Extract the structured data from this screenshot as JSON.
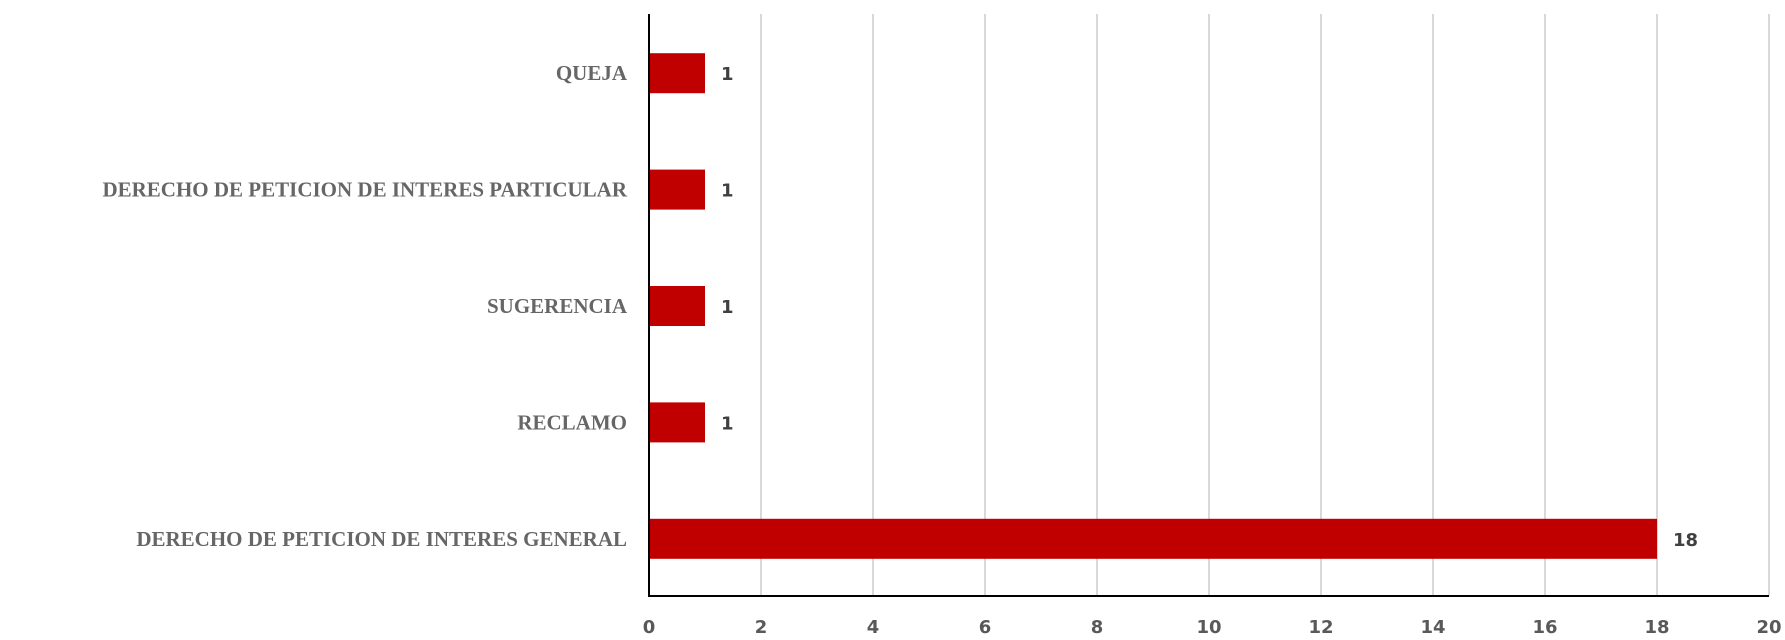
{
  "chart_data": {
    "type": "bar",
    "orientation": "horizontal",
    "categories": [
      "QUEJA",
      "DERECHO DE PETICION DE INTERES PARTICULAR",
      "SUGERENCIA",
      "RECLAMO",
      "DERECHO DE PETICION DE INTERES GENERAL"
    ],
    "values": [
      1,
      1,
      1,
      1,
      18
    ],
    "data_labels": [
      "1",
      "1",
      "1",
      "1",
      "18"
    ],
    "xlim": [
      0,
      20
    ],
    "x_ticks": [
      0,
      2,
      4,
      6,
      8,
      10,
      12,
      14,
      16,
      18,
      20
    ],
    "x_tick_labels": [
      "0",
      "2",
      "4",
      "6",
      "8",
      "10",
      "12",
      "14",
      "16",
      "18",
      "20"
    ],
    "grid": "vertical",
    "legend": "none",
    "bar_color": "#c00000",
    "grid_color": "#d9d9d9",
    "title": "",
    "xlabel": "",
    "ylabel": ""
  }
}
